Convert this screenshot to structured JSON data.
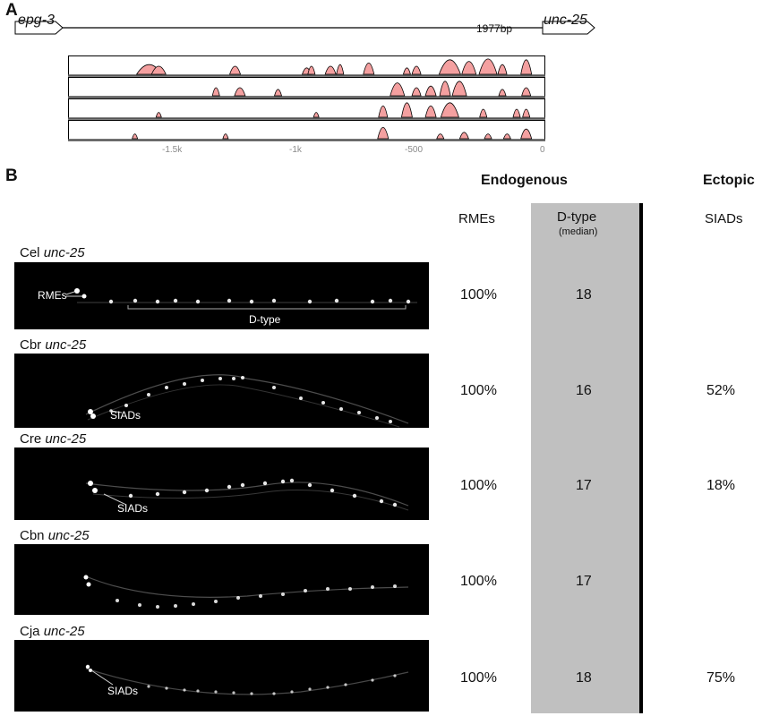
{
  "panel_a": {
    "letter": "A",
    "gene_left": "epg-3",
    "gene_right": "unc-25",
    "length_label": "1977bp",
    "axis_ticks": [
      {
        "label": "-1.5k",
        "value": -1500
      },
      {
        "label": "-1k",
        "value": -1000
      },
      {
        "label": "-500",
        "value": -500
      },
      {
        "label": "0",
        "value": 0
      }
    ],
    "conservation_tracks": 4,
    "track_color": "#f4a0a0"
  },
  "panel_b": {
    "letter": "B",
    "header_endogenous": "Endogenous",
    "header_ectopic": "Ectopic",
    "columns": {
      "rmes": "RMEs",
      "dtype": "D-type",
      "dtype_sub": "(median)",
      "siads": "SIADs"
    },
    "rows": [
      {
        "species": "Cel",
        "gene": "unc-25",
        "rmes": "100%",
        "dtype": "18",
        "siads": ""
      },
      {
        "species": "Cbr",
        "gene": "unc-25",
        "rmes": "100%",
        "dtype": "16",
        "siads": "52%"
      },
      {
        "species": "Cre",
        "gene": "unc-25",
        "rmes": "100%",
        "dtype": "17",
        "siads": "18%"
      },
      {
        "species": "Cbn",
        "gene": "unc-25",
        "rmes": "100%",
        "dtype": "17",
        "siads": ""
      },
      {
        "species": "Cja",
        "gene": "unc-25",
        "rmes": "100%",
        "dtype": "18",
        "siads": "75%"
      }
    ],
    "annotations": {
      "rmes_label": "RMEs",
      "dtype_label": "D-type",
      "siads_label": "SIADs"
    },
    "shade_color": "#c0c0c0"
  }
}
